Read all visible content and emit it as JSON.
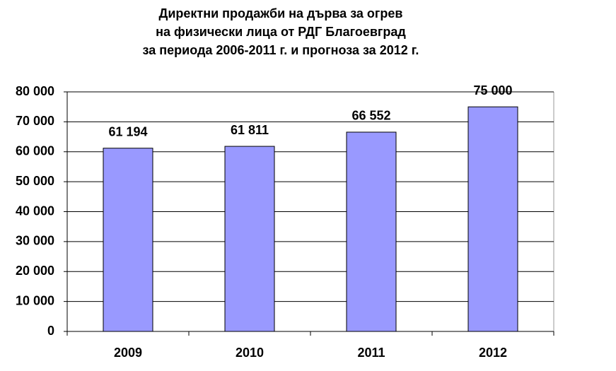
{
  "chart_data": {
    "type": "bar",
    "title": [
      "Директни продажби на дърва за огрев",
      "на физически лица от РДГ Благоевград",
      "за периода 2006-2011 г. и прогноза за 2012 г."
    ],
    "categories": [
      "2009",
      "2010",
      "2011",
      "2012"
    ],
    "values": [
      61194,
      61811,
      66552,
      75000
    ],
    "value_labels": [
      "61 194",
      "61 811",
      "66 552",
      "75 000"
    ],
    "color": "#9999ff",
    "ylim": [
      0,
      80000
    ],
    "yticks": [
      0,
      {
        "value": 10000,
        "label": "10 000"
      },
      {
        "value": 20000,
        "label": "20 000"
      },
      {
        "value": 30000,
        "label": "30 000"
      },
      {
        "value": 40000,
        "label": "40 000"
      },
      {
        "value": 50000,
        "label": "50 000"
      },
      {
        "value": 60000,
        "label": "60 000"
      },
      {
        "value": 70000,
        "label": "70 000"
      },
      {
        "value": 80000,
        "label": "80 000"
      }
    ],
    "grid": true
  }
}
